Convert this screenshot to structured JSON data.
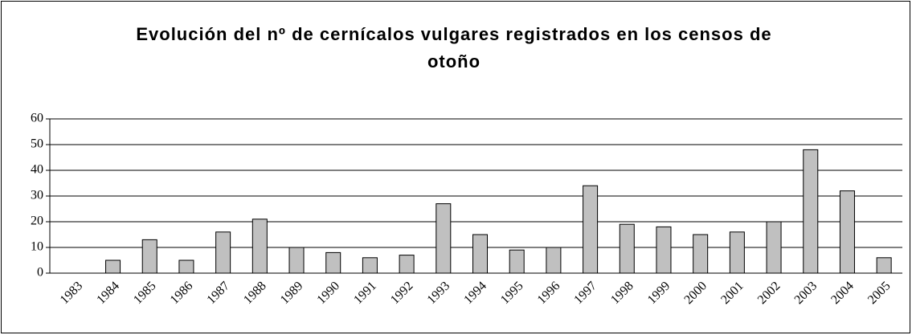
{
  "chart_data": {
    "type": "bar",
    "title": "Evolución del nº de cernícalos vulgares registrados en los censos de otoño",
    "categories": [
      "1983",
      "1984",
      "1985",
      "1986",
      "1987",
      "1988",
      "1989",
      "1990",
      "1991",
      "1992",
      "1993",
      "1994",
      "1995",
      "1996",
      "1997",
      "1998",
      "1999",
      "2000",
      "2001",
      "2002",
      "2003",
      "2004",
      "2005"
    ],
    "values": [
      0,
      5,
      13,
      5,
      16,
      21,
      10,
      8,
      6,
      7,
      27,
      15,
      9,
      10,
      34,
      19,
      18,
      15,
      16,
      20,
      48,
      32,
      6
    ],
    "color": "#c0c0c0",
    "ylim": [
      0,
      60
    ],
    "yticks": [
      0,
      10,
      20,
      30,
      40,
      50,
      60
    ],
    "grid": true
  }
}
